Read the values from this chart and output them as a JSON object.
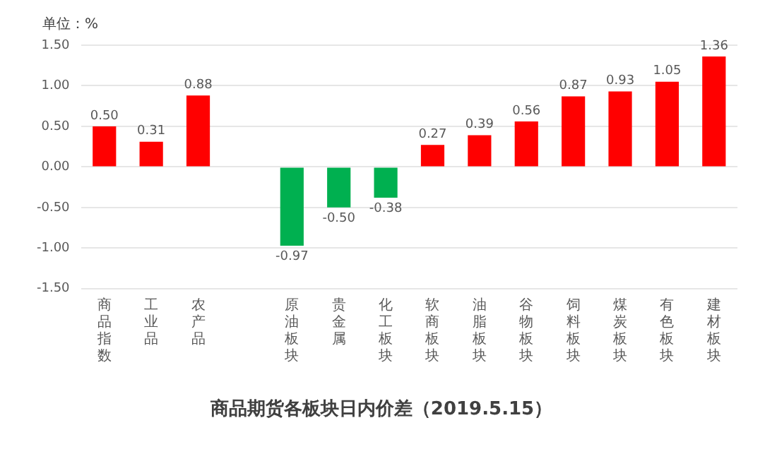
{
  "chart_data": {
    "type": "bar",
    "title": "商品期货各板块日内价差（2019.5.15）",
    "ylabel": "单位：%",
    "categories": [
      "商品指数",
      "工业品",
      "农产品",
      null,
      "原油板块",
      "贵金属",
      "化工板块",
      "软商板块",
      "油脂板块",
      "谷物板块",
      "饲料板块",
      "煤炭板块",
      "有色板块",
      "建材板块"
    ],
    "values": [
      0.5,
      0.31,
      0.88,
      null,
      -0.97,
      -0.5,
      -0.38,
      0.27,
      0.39,
      0.56,
      0.87,
      0.93,
      1.05,
      1.36
    ],
    "colors": [
      "#ff0000",
      "#ff0000",
      "#ff0000",
      "#ff0000",
      "#00b050",
      "#00b050",
      "#00b050",
      "#ff0000",
      "#ff0000",
      "#ff0000",
      "#ff0000",
      "#ff0000",
      "#ff0000",
      "#ff0000"
    ],
    "ylim": [
      -1.5,
      1.5
    ],
    "yticks": [
      {
        "value": -1.5,
        "label": "-1.50"
      },
      {
        "value": -1,
        "label": "-1.00"
      },
      {
        "value": -0.5,
        "label": "-0.50"
      },
      {
        "value": 0,
        "label": "0.00"
      },
      {
        "value": 0.5,
        "label": "0.50"
      },
      {
        "value": 1,
        "label": "1.00"
      },
      {
        "value": 1.5,
        "label": "1.50"
      }
    ],
    "value_labels": [
      "0.50",
      "0.31",
      "0.88",
      null,
      "-0.97",
      "-0.50",
      "-0.38",
      "0.27",
      "0.39",
      "0.56",
      "0.87",
      "0.93",
      "1.05",
      "1.36"
    ],
    "grid": "y",
    "legend": false
  }
}
